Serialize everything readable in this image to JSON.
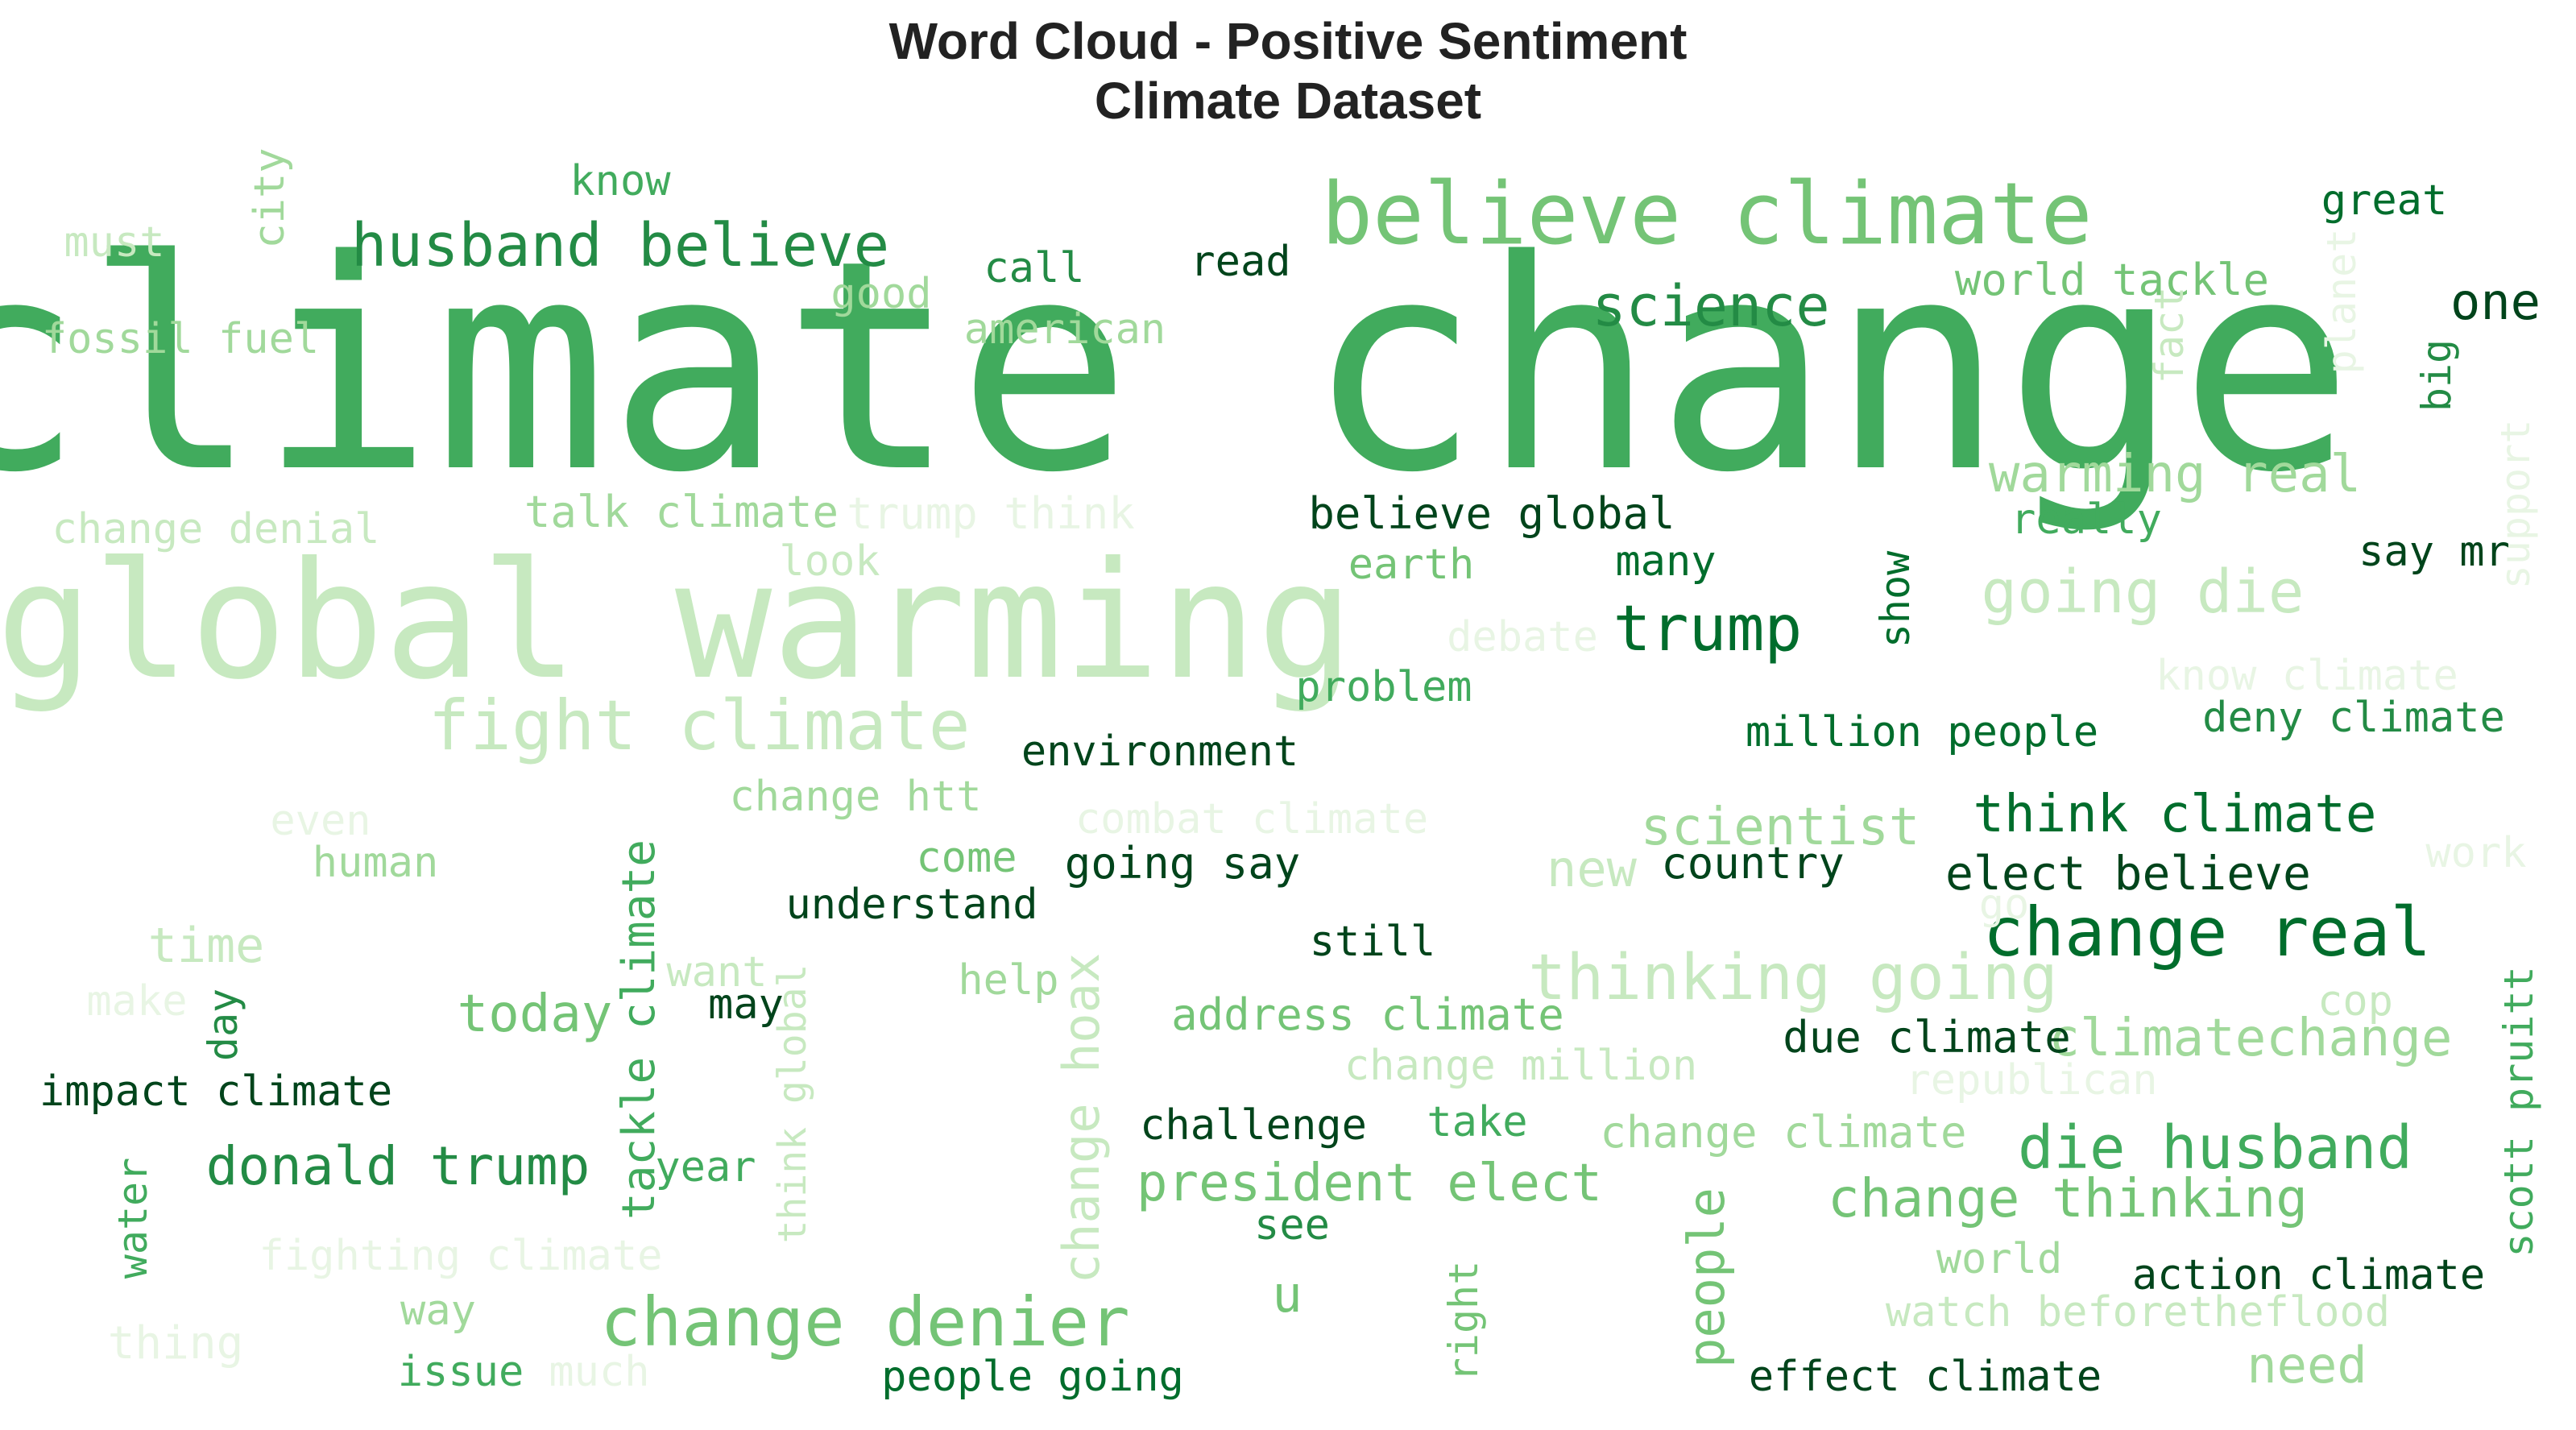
{
  "chart_data": {
    "type": "wordcloud",
    "title_line1": "Word Cloud - Positive Sentiment",
    "title_line2": "Climate Dataset",
    "colormap": [
      "#e8f5e4",
      "#c7e9c0",
      "#a1d99b",
      "#74c476",
      "#41ab5d",
      "#238b45",
      "#006d2c",
      "#00441b"
    ],
    "words": [
      {
        "text": "climate change",
        "weight": 1.0
      },
      {
        "text": "global warming",
        "weight": 0.45
      },
      {
        "text": "believe climate",
        "weight": 0.3
      },
      {
        "text": "fight climate",
        "weight": 0.25
      },
      {
        "text": "husband believe",
        "weight": 0.22
      },
      {
        "text": "change denier",
        "weight": 0.24
      },
      {
        "text": "change real",
        "weight": 0.24
      },
      {
        "text": "die husband",
        "weight": 0.22
      },
      {
        "text": "science",
        "weight": 0.2
      },
      {
        "text": "trump",
        "weight": 0.2
      },
      {
        "text": "donald trump",
        "weight": 0.2
      },
      {
        "text": "president elect",
        "weight": 0.2
      },
      {
        "text": "change thinking",
        "weight": 0.2
      },
      {
        "text": "thinking going",
        "weight": 0.2
      },
      {
        "text": "going die",
        "weight": 0.19
      },
      {
        "text": "warming real",
        "weight": 0.18
      },
      {
        "text": "scientist",
        "weight": 0.18
      },
      {
        "text": "think climate",
        "weight": 0.18
      },
      {
        "text": "climatechange",
        "weight": 0.18
      },
      {
        "text": "change hoax",
        "weight": 0.17
      },
      {
        "text": "one",
        "weight": 0.17
      },
      {
        "text": "today",
        "weight": 0.17
      },
      {
        "text": "tackle climate",
        "weight": 0.16
      },
      {
        "text": "time",
        "weight": 0.15
      },
      {
        "text": "new",
        "weight": 0.15
      },
      {
        "text": "need",
        "weight": 0.15
      },
      {
        "text": "u",
        "weight": 0.15
      },
      {
        "text": "people",
        "weight": 0.15
      },
      {
        "text": "elect believe",
        "weight": 0.15
      },
      {
        "text": "world tackle",
        "weight": 0.14
      },
      {
        "text": "trump think",
        "weight": 0.14
      },
      {
        "text": "talk climate",
        "weight": 0.14
      },
      {
        "text": "fossil fuel",
        "weight": 0.14
      },
      {
        "text": "change denial",
        "weight": 0.14
      },
      {
        "text": "believe global",
        "weight": 0.14
      },
      {
        "text": "million people",
        "weight": 0.14
      },
      {
        "text": "deny climate",
        "weight": 0.14
      },
      {
        "text": "change climate",
        "weight": 0.14
      },
      {
        "text": "address climate",
        "weight": 0.14
      },
      {
        "text": "change million",
        "weight": 0.14
      },
      {
        "text": "due climate",
        "weight": 0.14
      },
      {
        "text": "combat climate",
        "weight": 0.14
      },
      {
        "text": "know climate",
        "weight": 0.13
      },
      {
        "text": "understand",
        "weight": 0.13
      },
      {
        "text": "environment",
        "weight": 0.13
      },
      {
        "text": "going say",
        "weight": 0.13
      },
      {
        "text": "country",
        "weight": 0.13
      },
      {
        "text": "impact climate",
        "weight": 0.13
      },
      {
        "text": "challenge",
        "weight": 0.13
      },
      {
        "text": "action climate",
        "weight": 0.13
      },
      {
        "text": "effect climate",
        "weight": 0.13
      },
      {
        "text": "people going",
        "weight": 0.13
      },
      {
        "text": "watch beforetheflood",
        "weight": 0.13
      },
      {
        "text": "fighting climate",
        "weight": 0.13
      },
      {
        "text": "think global",
        "weight": 0.13
      },
      {
        "text": "scott pruitt",
        "weight": 0.13
      },
      {
        "text": "change htt",
        "weight": 0.13
      },
      {
        "text": "republican",
        "weight": 0.13
      },
      {
        "text": "great",
        "weight": 0.12
      },
      {
        "text": "know",
        "weight": 0.12
      },
      {
        "text": "must",
        "weight": 0.12
      },
      {
        "text": "call",
        "weight": 0.12
      },
      {
        "text": "read",
        "weight": 0.12
      },
      {
        "text": "good",
        "weight": 0.12
      },
      {
        "text": "american",
        "weight": 0.12
      },
      {
        "text": "city",
        "weight": 0.12
      },
      {
        "text": "fact",
        "weight": 0.12
      },
      {
        "text": "planet",
        "weight": 0.12
      },
      {
        "text": "big",
        "weight": 0.12
      },
      {
        "text": "support",
        "weight": 0.12
      },
      {
        "text": "really",
        "weight": 0.12
      },
      {
        "text": "say mr",
        "weight": 0.12
      },
      {
        "text": "many",
        "weight": 0.12
      },
      {
        "text": "earth",
        "weight": 0.12
      },
      {
        "text": "look",
        "weight": 0.12
      },
      {
        "text": "show",
        "weight": 0.12
      },
      {
        "text": "debate",
        "weight": 0.12
      },
      {
        "text": "problem",
        "weight": 0.12
      },
      {
        "text": "even",
        "weight": 0.12
      },
      {
        "text": "human",
        "weight": 0.12
      },
      {
        "text": "come",
        "weight": 0.12
      },
      {
        "text": "work",
        "weight": 0.12
      },
      {
        "text": "go",
        "weight": 0.12
      },
      {
        "text": "still",
        "weight": 0.12
      },
      {
        "text": "want",
        "weight": 0.12
      },
      {
        "text": "make",
        "weight": 0.12
      },
      {
        "text": "day",
        "weight": 0.12
      },
      {
        "text": "may",
        "weight": 0.12
      },
      {
        "text": "help",
        "weight": 0.12
      },
      {
        "text": "cop",
        "weight": 0.12
      },
      {
        "text": "take",
        "weight": 0.12
      },
      {
        "text": "year",
        "weight": 0.12
      },
      {
        "text": "water",
        "weight": 0.12
      },
      {
        "text": "see",
        "weight": 0.12
      },
      {
        "text": "world",
        "weight": 0.12
      },
      {
        "text": "way",
        "weight": 0.12
      },
      {
        "text": "right",
        "weight": 0.12
      },
      {
        "text": "thing",
        "weight": 0.12
      },
      {
        "text": "issue",
        "weight": 0.12
      },
      {
        "text": "much",
        "weight": 0.12
      }
    ]
  }
}
